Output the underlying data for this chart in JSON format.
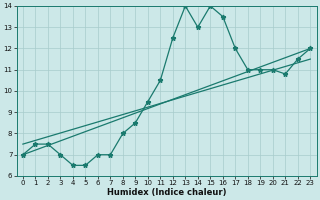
{
  "title": "",
  "xlabel": "Humidex (Indice chaleur)",
  "x_values": [
    0,
    1,
    2,
    3,
    4,
    5,
    6,
    7,
    8,
    9,
    10,
    11,
    12,
    13,
    14,
    15,
    16,
    17,
    18,
    19,
    20,
    21,
    22,
    23
  ],
  "y_main": [
    7.0,
    7.5,
    7.5,
    7.0,
    6.5,
    6.5,
    7.0,
    7.0,
    8.0,
    8.5,
    9.5,
    10.5,
    12.5,
    14.0,
    13.0,
    14.0,
    13.5,
    12.0,
    11.0,
    11.0,
    11.0,
    10.8,
    11.5,
    12.0
  ],
  "trend1_x": [
    0,
    23
  ],
  "trend1_y": [
    7.0,
    12.0
  ],
  "trend2_x": [
    0,
    23
  ],
  "trend2_y": [
    7.5,
    11.5
  ],
  "ylim": [
    6,
    14
  ],
  "xlim": [
    -0.5,
    23.5
  ],
  "yticks": [
    6,
    7,
    8,
    9,
    10,
    11,
    12,
    13,
    14
  ],
  "xticks": [
    0,
    1,
    2,
    3,
    4,
    5,
    6,
    7,
    8,
    9,
    10,
    11,
    12,
    13,
    14,
    15,
    16,
    17,
    18,
    19,
    20,
    21,
    22,
    23
  ],
  "line_color": "#1a7a6e",
  "bg_color": "#cce8e8",
  "grid_color": "#a8cccc",
  "marker": "*",
  "marker_size": 3.5,
  "linewidth": 0.9,
  "tick_fontsize": 5.0,
  "xlabel_fontsize": 6.0
}
